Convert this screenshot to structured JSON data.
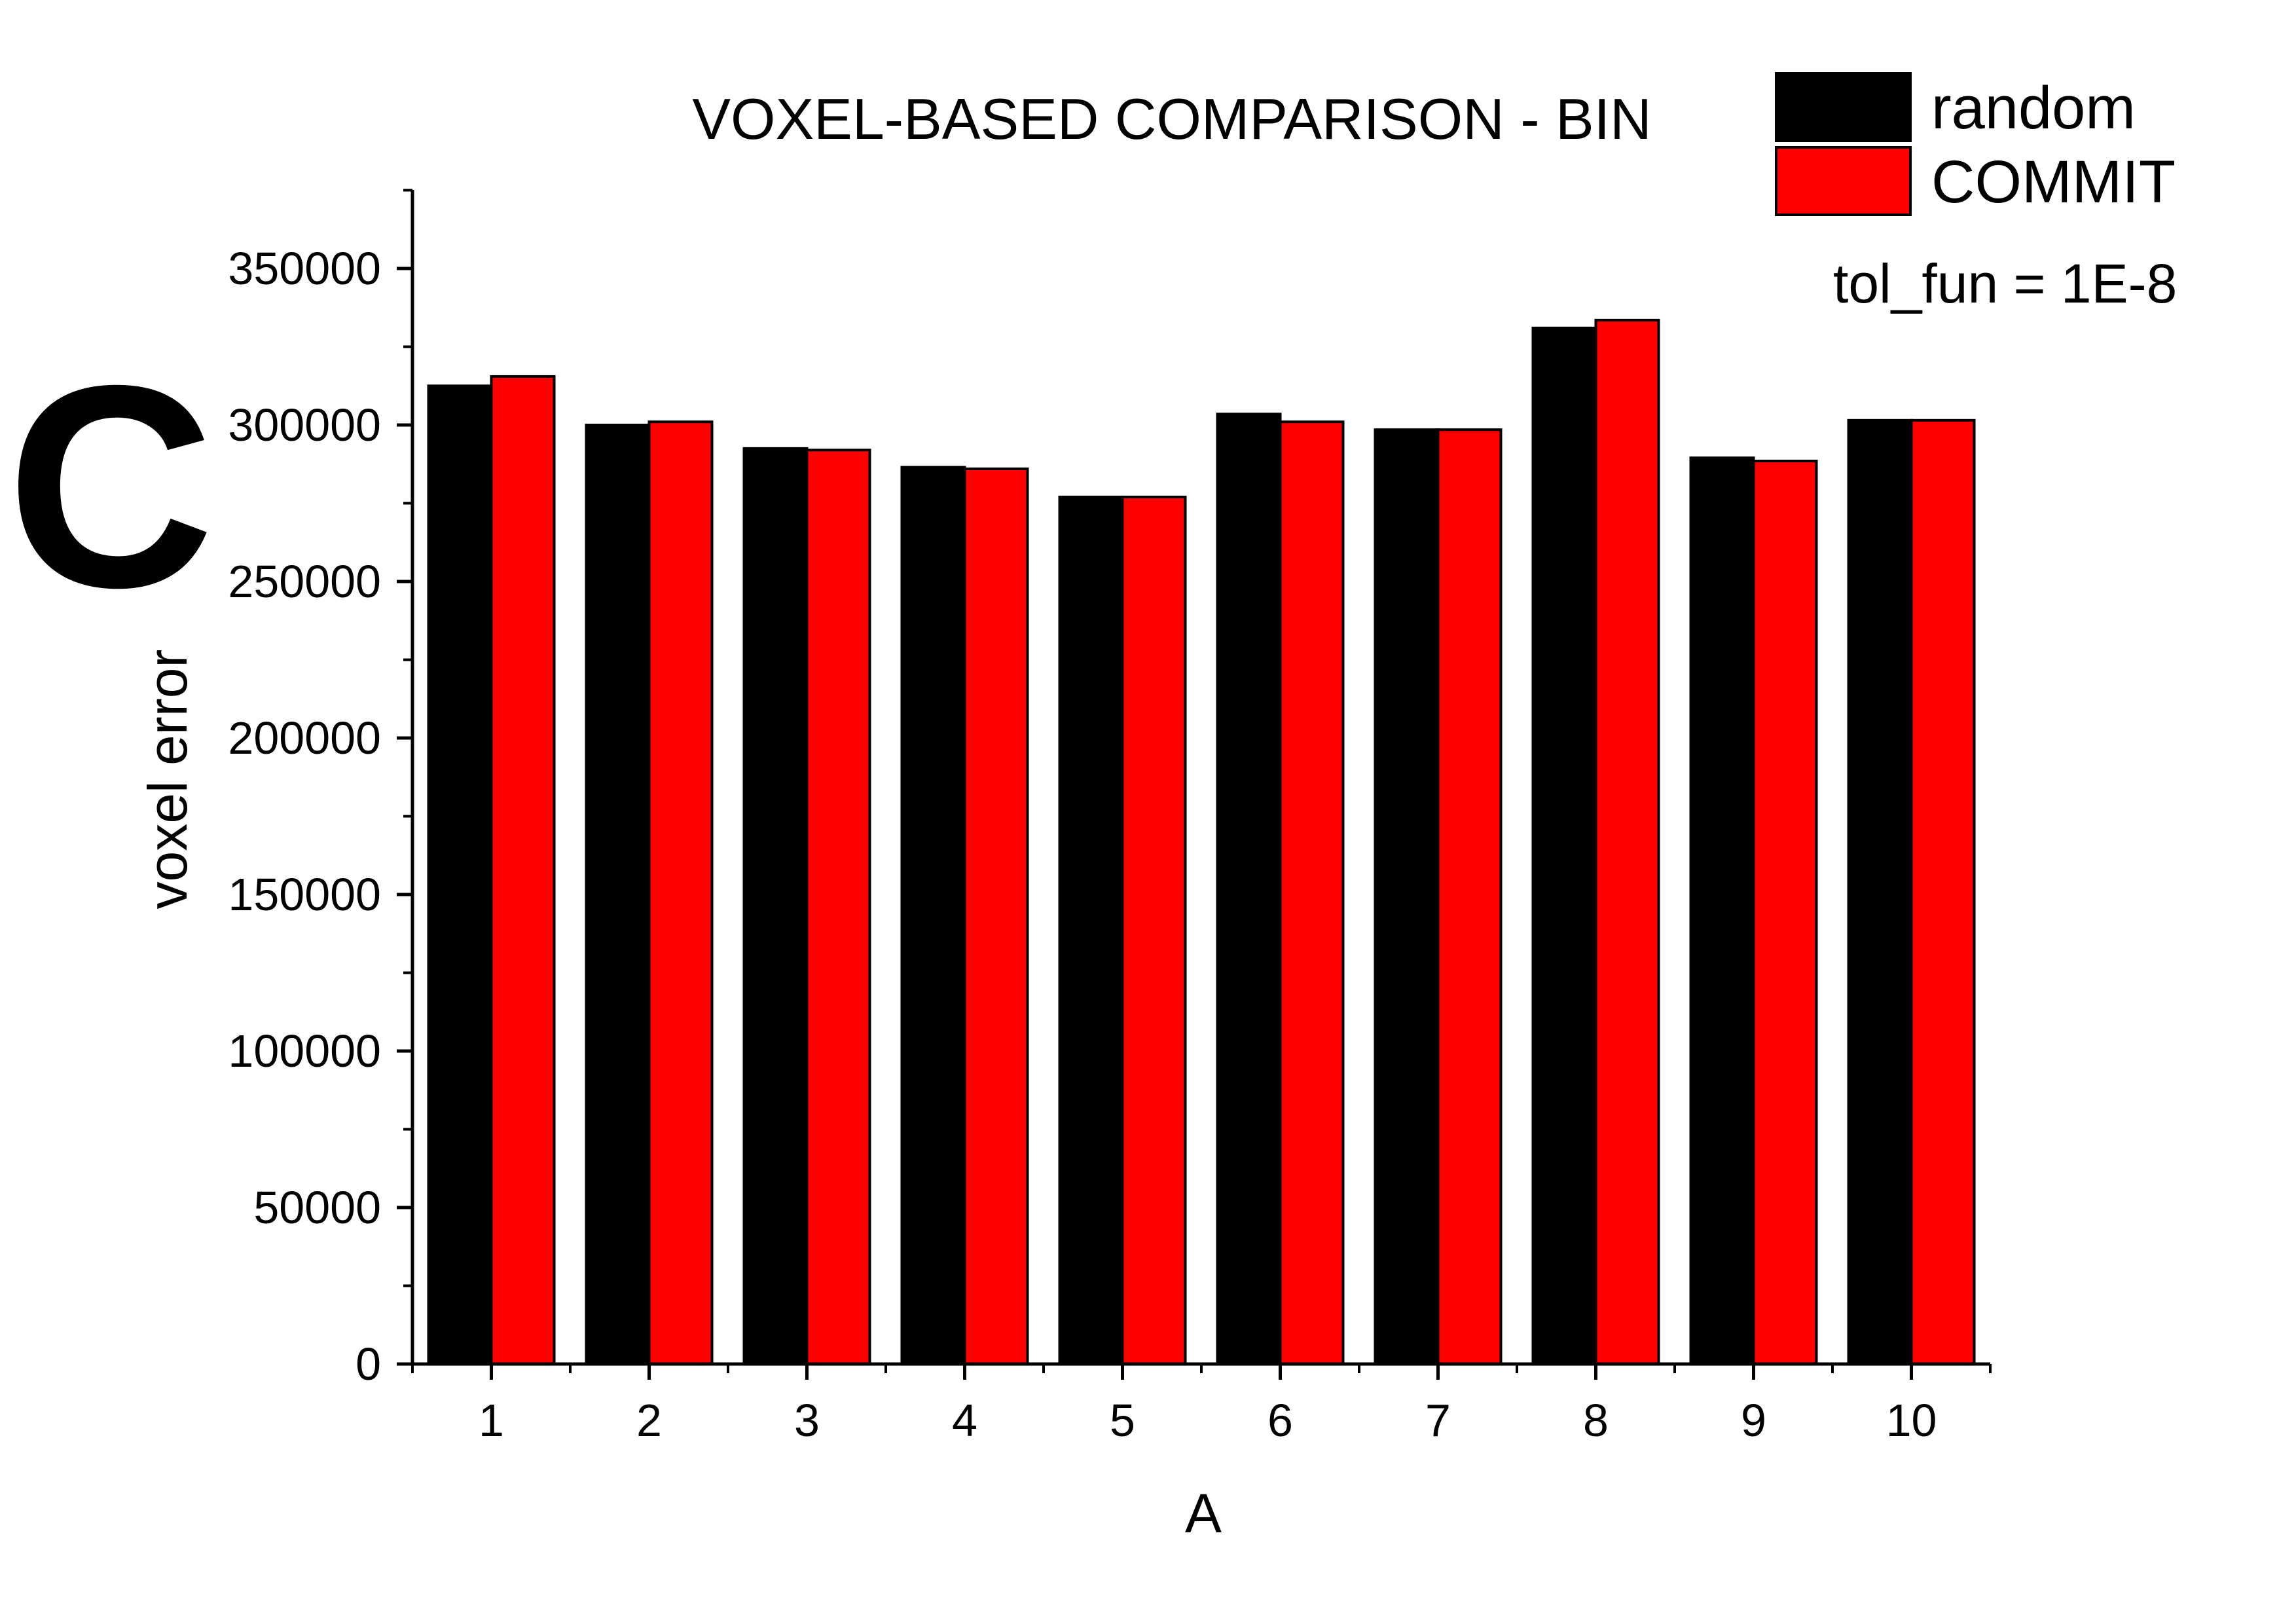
{
  "panel_label": "C",
  "chart_data": {
    "type": "bar",
    "title": "VOXEL-BASED COMPARISON - BIN",
    "xlabel": "A",
    "ylabel": "voxel error",
    "categories": [
      "1",
      "2",
      "3",
      "4",
      "5",
      "6",
      "7",
      "8",
      "9",
      "10"
    ],
    "series": [
      {
        "name": "random",
        "color": "#000000",
        "values": [
          312500,
          300000,
          292500,
          286500,
          277000,
          303500,
          298500,
          331000,
          289500,
          301500
        ]
      },
      {
        "name": "COMMIT",
        "color": "#ff0000",
        "values": [
          315500,
          301000,
          292000,
          286000,
          277000,
          301000,
          298500,
          333500,
          288500,
          301500
        ]
      }
    ],
    "ylim": [
      0,
      375000
    ],
    "yticks": [
      0,
      50000,
      100000,
      150000,
      200000,
      250000,
      300000,
      350000
    ],
    "ytick_labels": [
      "0",
      "50000",
      "100000",
      "150000",
      "200000",
      "250000",
      "300000",
      "350000"
    ],
    "grid": false,
    "legend_position": "top-right",
    "annotation": "tol_fun = 1E-8"
  }
}
